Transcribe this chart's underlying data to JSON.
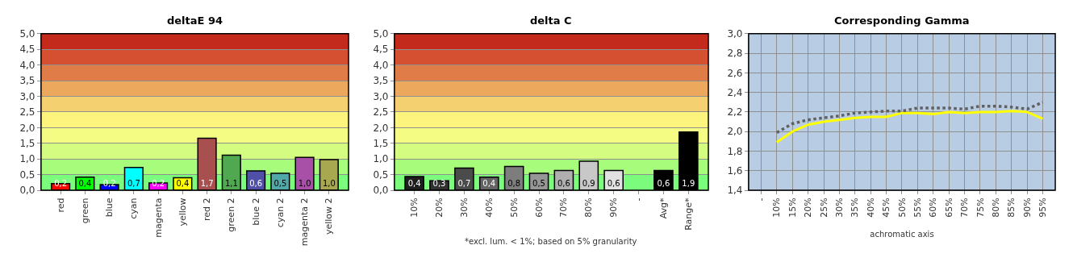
{
  "chart_data": [
    {
      "type": "bar",
      "title": "deltaE 94",
      "categories": [
        "red",
        "green",
        "blue",
        "cyan",
        "magenta",
        "yellow",
        "red 2",
        "green 2",
        "blue 2",
        "cyan 2",
        "magenta 2",
        "yellow 2"
      ],
      "values": [
        0.21,
        0.42,
        0.18,
        0.73,
        0.23,
        0.4,
        1.66,
        1.12,
        0.62,
        0.54,
        1.05,
        0.98
      ],
      "colors": [
        "#ff0000",
        "#00ff00",
        "#0000ff",
        "#00ffff",
        "#ff00ff",
        "#ffff00",
        "#a85050",
        "#50a850",
        "#5050a8",
        "#50a8a8",
        "#a850a8",
        "#a8a850"
      ],
      "value_labels": [
        "0,2",
        "0,4",
        "0,2",
        "0,7",
        "0,2",
        "0,4",
        "1,7",
        "1,1",
        "0,6",
        "0,5",
        "1,0",
        "1,0"
      ],
      "ylim": [
        0,
        5
      ],
      "yticks": [
        {
          "value": 0,
          "label": "0,0"
        },
        {
          "value": 0.5,
          "label": "0,5"
        },
        {
          "value": 1,
          "label": "1,0"
        },
        {
          "value": 1.5,
          "label": "1,5"
        },
        {
          "value": 2,
          "label": "2,0"
        },
        {
          "value": 2.5,
          "label": "2,5"
        },
        {
          "value": 3,
          "label": "3,0"
        },
        {
          "value": 3.5,
          "label": "3,5"
        },
        {
          "value": 4,
          "label": "4,0"
        },
        {
          "value": 4.5,
          "label": "4,5"
        },
        {
          "value": 5,
          "label": "5,0"
        }
      ],
      "bands": [
        {
          "axis": "y",
          "from": 0,
          "to": 0.5,
          "color": "#7cfc7c"
        },
        {
          "axis": "y",
          "from": 0.5,
          "to": 1,
          "color": "#a8fc7c"
        },
        {
          "axis": "y",
          "from": 1,
          "to": 1.5,
          "color": "#d4fc80"
        },
        {
          "axis": "y",
          "from": 1.5,
          "to": 2,
          "color": "#f4fc84"
        },
        {
          "axis": "y",
          "from": 2,
          "to": 2.5,
          "color": "#fcf47c"
        },
        {
          "axis": "y",
          "from": 2.5,
          "to": 3,
          "color": "#f4d070"
        },
        {
          "axis": "y",
          "from": 3,
          "to": 3.5,
          "color": "#eca85c"
        },
        {
          "axis": "y",
          "from": 3.5,
          "to": 4,
          "color": "#e07c48"
        },
        {
          "axis": "y",
          "from": 4,
          "to": 4.5,
          "color": "#d45030"
        },
        {
          "axis": "y",
          "from": 4.5,
          "to": 5,
          "color": "#c42a1c"
        }
      ],
      "grid": "y"
    },
    {
      "type": "bar",
      "title": "delta C",
      "categories": [
        "10%",
        "20%",
        "30%",
        "40%",
        "50%",
        "60%",
        "70%",
        "80%",
        "90%",
        "-",
        "Avg*",
        "Range*"
      ],
      "values": [
        0.44,
        0.3,
        0.71,
        0.42,
        0.76,
        0.54,
        0.63,
        0.93,
        0.63,
        null,
        0.63,
        1.86
      ],
      "colors": [
        "#1e1e1e",
        "#323232",
        "#4b4b4b",
        "#646464",
        "#7d7d7d",
        "#969696",
        "#afafaf",
        "#c8c8c8",
        "#e1e1e1",
        "#000000",
        "#000000",
        "#000000"
      ],
      "value_labels": [
        "0,4",
        "0,3",
        "0,7",
        "0,4",
        "0,8",
        "0,5",
        "0,6",
        "0,9",
        "0,6",
        null,
        "0,6",
        "1,9"
      ],
      "ylim": [
        0,
        5
      ],
      "yticks": [
        {
          "value": 0,
          "label": "0,0"
        },
        {
          "value": 0.5,
          "label": "0,5"
        },
        {
          "value": 1,
          "label": "1,0"
        },
        {
          "value": 1.5,
          "label": "1,5"
        },
        {
          "value": 2,
          "label": "2,0"
        },
        {
          "value": 2.5,
          "label": "2,5"
        },
        {
          "value": 3,
          "label": "3,0"
        },
        {
          "value": 3.5,
          "label": "3,5"
        },
        {
          "value": 4,
          "label": "4,0"
        },
        {
          "value": 4.5,
          "label": "4,5"
        },
        {
          "value": 5,
          "label": "5,0"
        }
      ],
      "bands": [
        {
          "axis": "y",
          "from": 0,
          "to": 0.5,
          "color": "#7cfc7c"
        },
        {
          "axis": "y",
          "from": 0.5,
          "to": 1,
          "color": "#a8fc7c"
        },
        {
          "axis": "y",
          "from": 1,
          "to": 1.5,
          "color": "#d4fc80"
        },
        {
          "axis": "y",
          "from": 1.5,
          "to": 2,
          "color": "#f4fc84"
        },
        {
          "axis": "y",
          "from": 2,
          "to": 2.5,
          "color": "#fcf47c"
        },
        {
          "axis": "y",
          "from": 2.5,
          "to": 3,
          "color": "#f4d070"
        },
        {
          "axis": "y",
          "from": 3,
          "to": 3.5,
          "color": "#eca85c"
        },
        {
          "axis": "y",
          "from": 3.5,
          "to": 4,
          "color": "#e07c48"
        },
        {
          "axis": "y",
          "from": 4,
          "to": 4.5,
          "color": "#d45030"
        },
        {
          "axis": "y",
          "from": 4.5,
          "to": 5,
          "color": "#c42a1c"
        }
      ],
      "annotations": [
        "*excl. lum. < 1%; based on 5% granularity"
      ],
      "grid": "y"
    },
    {
      "type": "line",
      "title": "Corresponding Gamma",
      "xlabel": "achromatic axis",
      "categories": [
        "-",
        "10%",
        "15%",
        "20%",
        "25%",
        "30%",
        "35%",
        "40%",
        "45%",
        "50%",
        "55%",
        "60%",
        "65%",
        "70%",
        "75%",
        "80%",
        "85%",
        "90%",
        "95%"
      ],
      "series": [
        {
          "color": "#ffff00",
          "line_style": "solid",
          "values": [
            null,
            1.89,
            2.0,
            2.07,
            2.1,
            2.12,
            2.14,
            2.15,
            2.15,
            2.19,
            2.19,
            2.18,
            2.2,
            2.19,
            2.2,
            2.2,
            2.21,
            2.2,
            2.13
          ]
        },
        {
          "color": "#606060",
          "line_style": "dotted",
          "values": [
            null,
            1.99,
            2.08,
            2.12,
            2.14,
            2.16,
            2.19,
            2.2,
            2.21,
            2.21,
            2.24,
            2.24,
            2.24,
            2.23,
            2.26,
            2.26,
            2.25,
            2.23,
            2.3
          ]
        }
      ],
      "ylim": [
        1.4,
        3.0
      ],
      "yticks": [
        {
          "value": 1.4,
          "label": "1,4"
        },
        {
          "value": 1.6,
          "label": "1,6"
        },
        {
          "value": 1.8,
          "label": "1,8"
        },
        {
          "value": 2.0,
          "label": "2,0"
        },
        {
          "value": 2.2,
          "label": "2,2"
        },
        {
          "value": 2.4,
          "label": "2,4"
        },
        {
          "value": 2.6,
          "label": "2,6"
        },
        {
          "value": 2.8,
          "label": "2,8"
        },
        {
          "value": 3.0,
          "label": "3,0"
        }
      ],
      "grid": true,
      "marker": "none"
    }
  ]
}
